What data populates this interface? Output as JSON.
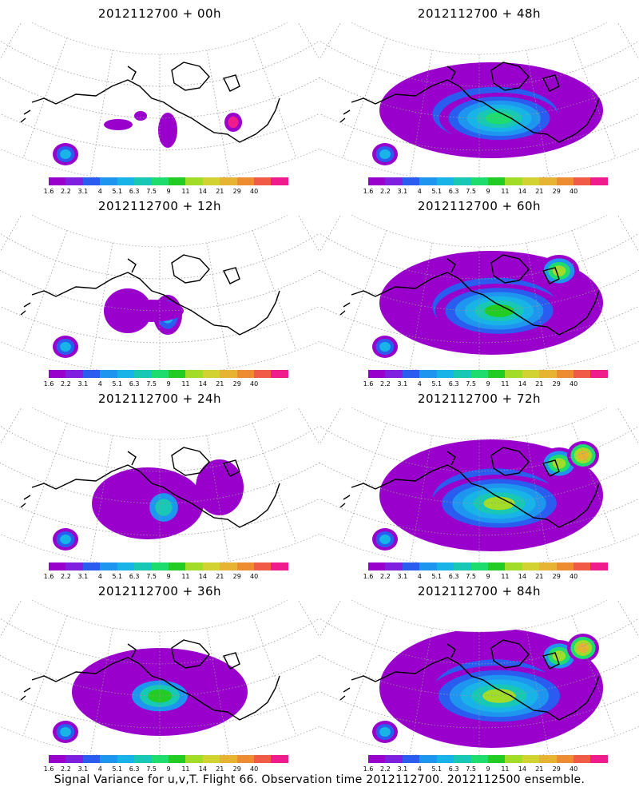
{
  "panels": [
    {
      "title": "2012112700 + 00h",
      "level": 0
    },
    {
      "title": "2012112700 + 48h",
      "level": 4
    },
    {
      "title": "2012112700 + 12h",
      "level": 1
    },
    {
      "title": "2012112700 + 60h",
      "level": 5
    },
    {
      "title": "2012112700 + 24h",
      "level": 2
    },
    {
      "title": "2012112700 + 72h",
      "level": 6
    },
    {
      "title": "2012112700 + 36h",
      "level": 3
    },
    {
      "title": "2012112700 + 84h",
      "level": 7
    }
  ],
  "colorbar": {
    "labels": [
      "1.6",
      "2.2",
      "3.1",
      "4",
      "5.1",
      "6.3",
      "7.5",
      "9",
      "11",
      "14",
      "21",
      "29",
      "40"
    ],
    "colors": [
      "#9900cc",
      "#7f1fe0",
      "#2a5cf0",
      "#1e96f0",
      "#18b4e8",
      "#19c8b4",
      "#1edc6e",
      "#22cc22",
      "#a0dc28",
      "#d2d232",
      "#e6b432",
      "#ee8c32",
      "#f05a46",
      "#ee1c8c"
    ]
  },
  "footer": "Signal Variance for u,v,T. Flight 66. Observation time 2012112700. 2012112500 ensemble."
}
